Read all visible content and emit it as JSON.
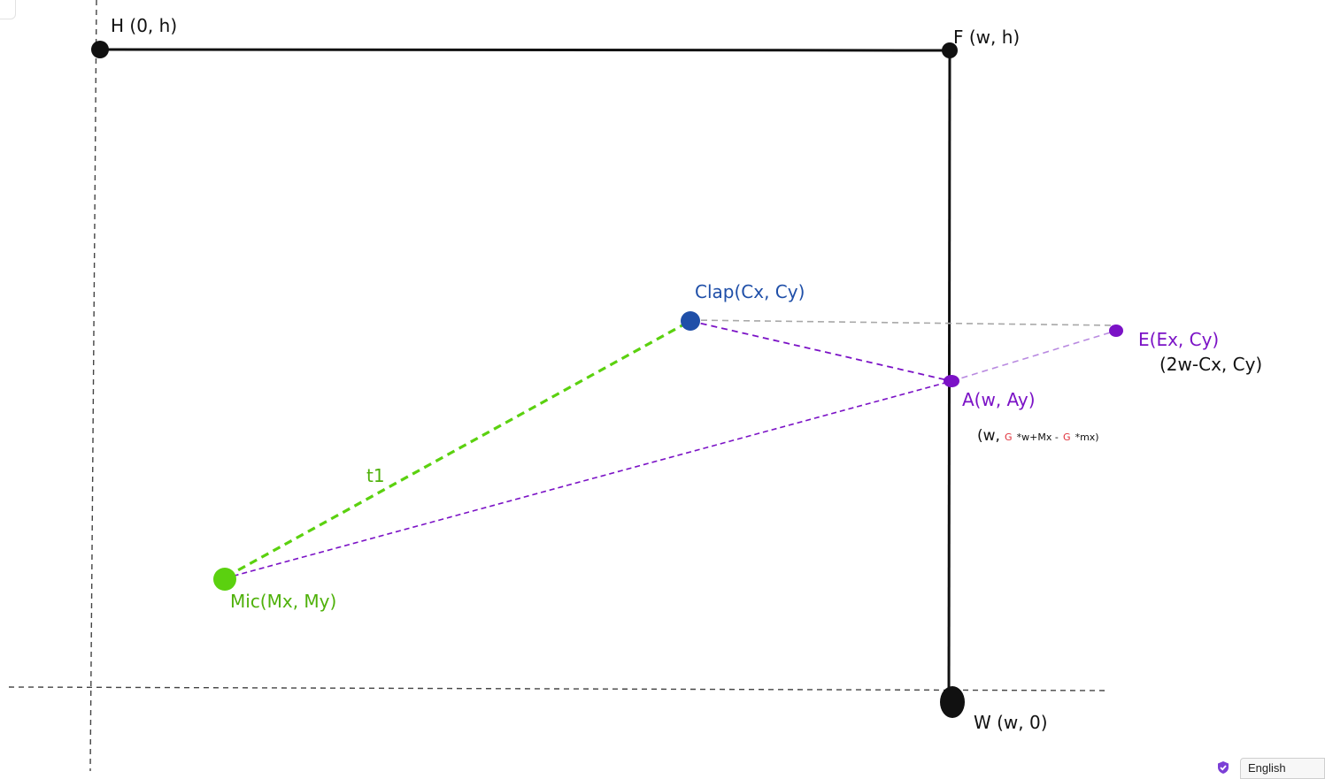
{
  "colors": {
    "black": "#111111",
    "axis": "#444444",
    "blue": "#1f4fa8",
    "green": "#5bd10f",
    "green_text": "#4fb10a",
    "purple": "#7b12c6",
    "purple_light": "#b98ae0",
    "grey": "#a8a8a8",
    "red": "#e0303a"
  },
  "labels": {
    "h": "H (0, h)",
    "f": "F (w, h)",
    "w": "W (w, 0)",
    "clap": "Clap(Cx, Cy)",
    "mic": "Mic(Mx, My)",
    "e": "E(Ex, Cy)",
    "e_coords": "(2w-Cx, Cy)",
    "a": "A(w, Ay)",
    "t1": "t1"
  },
  "a_formula": {
    "open": "(w,",
    "g1": "G",
    "part1": "*w+Mx -",
    "g2": "G",
    "part2": "*mx)"
  },
  "footer": {
    "language": "English",
    "shield_icon": "shield-check-icon"
  }
}
